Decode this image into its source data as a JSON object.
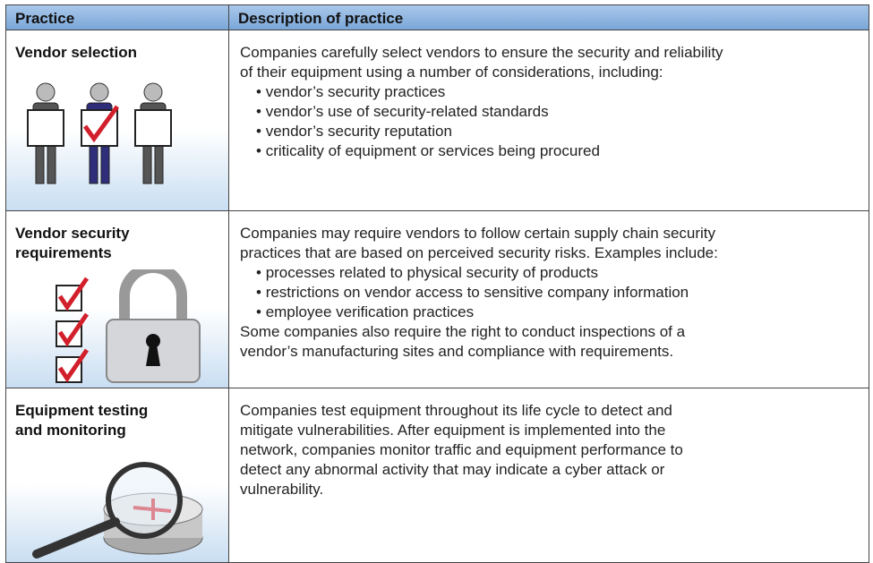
{
  "table": {
    "header": [
      "Practice",
      "Description of practice"
    ],
    "rows": [
      {
        "practice": [
          "Vendor selection"
        ],
        "intro": [
          "Companies carefully select vendors to ensure the security and reliability",
          "of their equipment using a number of considerations, including:"
        ],
        "bullets": [
          "vendor’s security practices",
          "vendor’s use of security-related standards",
          "vendor’s security reputation",
          "criticality of equipment or services being procured"
        ],
        "outro": []
      },
      {
        "practice": [
          "Vendor security",
          "requirements"
        ],
        "intro": [
          "Companies may require vendors to follow certain supply chain security",
          "practices that are based on perceived security risks.  Examples include:"
        ],
        "bullets": [
          "processes related to physical security of products",
          "restrictions on vendor access to sensitive company information",
          "employee verification practices"
        ],
        "outro": [
          "Some companies also require the right to conduct inspections of a",
          "vendor’s manufacturing sites and compliance with requirements."
        ]
      },
      {
        "practice": [
          "Equipment testing",
          "and monitoring"
        ],
        "intro": [
          "Companies test equipment throughout its life cycle to detect and",
          "mitigate vulnerabilities.  After equipment is implemented into the",
          "network, companies monitor traffic and equipment performance to",
          "detect any abnormal activity that may indicate a cyber attack or",
          "vulnerability."
        ],
        "bullets": [],
        "outro": []
      }
    ]
  }
}
